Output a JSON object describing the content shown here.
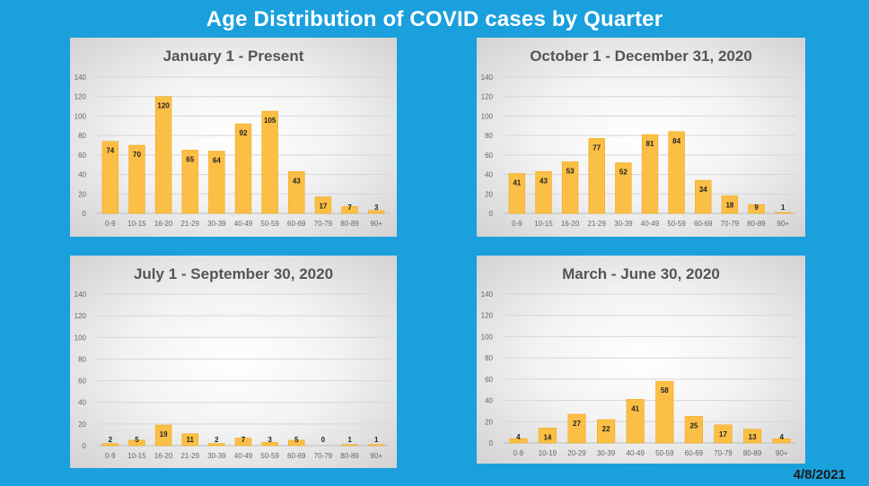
{
  "page": {
    "title": "Age Distribution of COVID cases by Quarter",
    "date": "4/8/2021"
  },
  "colors": {
    "background": "#1aa0dc",
    "bar": "#fbbf45",
    "bar_edge": "#f2a91d"
  },
  "chart_data": [
    {
      "type": "bar",
      "title": "January 1 - Present",
      "categories": [
        "0-9",
        "10-15",
        "16-20",
        "21-29",
        "30-39",
        "40-49",
        "50-59",
        "60-69",
        "70-79",
        "80-89",
        "90+"
      ],
      "values": [
        74,
        70,
        120,
        65,
        64,
        92,
        105,
        43,
        17,
        7,
        3
      ],
      "ylim": [
        0,
        140
      ],
      "yticks": [
        0,
        20,
        40,
        60,
        80,
        100,
        120,
        140
      ],
      "grid": true
    },
    {
      "type": "bar",
      "title": "October 1 - December 31, 2020",
      "categories": [
        "0-9",
        "10-15",
        "16-20",
        "21-29",
        "30-39",
        "40-49",
        "50-59",
        "60-69",
        "70-79",
        "80-89",
        "90+"
      ],
      "values": [
        41,
        43,
        53,
        77,
        52,
        81,
        84,
        34,
        18,
        9,
        1
      ],
      "ylim": [
        0,
        140
      ],
      "yticks": [
        0,
        20,
        40,
        60,
        80,
        100,
        120,
        140
      ],
      "grid": true
    },
    {
      "type": "bar",
      "title": "July 1 - September 30, 2020",
      "categories": [
        "0-9",
        "10-15",
        "16-20",
        "21-29",
        "30-39",
        "40-49",
        "50-59",
        "60-69",
        "70-79",
        "80-89",
        "90+"
      ],
      "values": [
        2,
        5,
        19,
        11,
        2,
        7,
        3,
        5,
        0,
        1,
        1
      ],
      "ylim": [
        0,
        140
      ],
      "yticks": [
        0,
        20,
        40,
        60,
        80,
        100,
        120,
        140
      ],
      "grid": true
    },
    {
      "type": "bar",
      "title": "March - June 30, 2020",
      "categories": [
        "0-9",
        "10-19",
        "20-29",
        "30-39",
        "40-49",
        "50-59",
        "60-69",
        "70-79",
        "80-89",
        "90+"
      ],
      "values": [
        4,
        14,
        27,
        22,
        41,
        58,
        25,
        17,
        13,
        4
      ],
      "ylim": [
        0,
        140
      ],
      "yticks": [
        0,
        20,
        40,
        60,
        80,
        100,
        120,
        140
      ],
      "grid": true
    }
  ]
}
